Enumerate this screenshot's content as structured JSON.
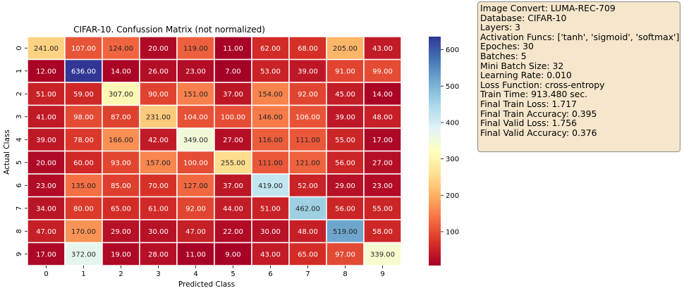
{
  "chart_data": {
    "type": "heatmap",
    "title": "CIFAR-10. Confussion Matrix (not normalized)",
    "xlabel": "Predicted Class",
    "ylabel": "Actual Class",
    "x_categories": [
      "0",
      "1",
      "2",
      "3",
      "4",
      "5",
      "6",
      "7",
      "8",
      "9"
    ],
    "y_categories": [
      "0",
      "1",
      "2",
      "3",
      "4",
      "5",
      "6",
      "7",
      "8",
      "9"
    ],
    "values": [
      [
        241,
        107,
        124,
        20,
        119,
        11,
        62,
        68,
        205,
        43
      ],
      [
        12,
        636,
        14,
        26,
        23,
        7,
        53,
        39,
        91,
        99
      ],
      [
        51,
        59,
        307,
        90,
        151,
        37,
        154,
        92,
        45,
        14
      ],
      [
        41,
        98,
        87,
        231,
        104,
        100,
        146,
        106,
        39,
        48
      ],
      [
        39,
        78,
        166,
        42,
        349,
        27,
        116,
        111,
        55,
        17
      ],
      [
        20,
        60,
        93,
        157,
        100,
        255,
        111,
        121,
        56,
        27
      ],
      [
        23,
        135,
        85,
        70,
        127,
        37,
        419,
        52,
        29,
        23
      ],
      [
        34,
        80,
        65,
        61,
        92,
        44,
        51,
        462,
        56,
        55
      ],
      [
        47,
        170,
        29,
        30,
        47,
        22,
        30,
        48,
        519,
        58
      ],
      [
        17,
        372,
        19,
        28,
        11,
        9,
        43,
        65,
        97,
        339
      ]
    ],
    "colormap": "RdYlBu",
    "colorbar": {
      "range": [
        7,
        636
      ],
      "ticks": [
        100,
        200,
        300,
        400,
        500,
        600
      ]
    }
  },
  "info_box": {
    "lines": [
      "Image Convert: LUMA-REC-709",
      "Database: CIFAR-10",
      "Layers: 3",
      "Activation Funcs: ['tanh', 'sigmoid', 'softmax']",
      "Epoches: 30",
      "Batches: 5",
      "Mini Batch Size: 32",
      "Learning Rate: 0.010",
      "Loss Function: cross-entropy",
      "Train Time: 913.480 sec.",
      "Final Train Loss: 1.717",
      "Final Train Accuracy: 0.395",
      "Final Valid Loss: 1.756",
      "Final Valid Accuracy: 0.376"
    ]
  }
}
